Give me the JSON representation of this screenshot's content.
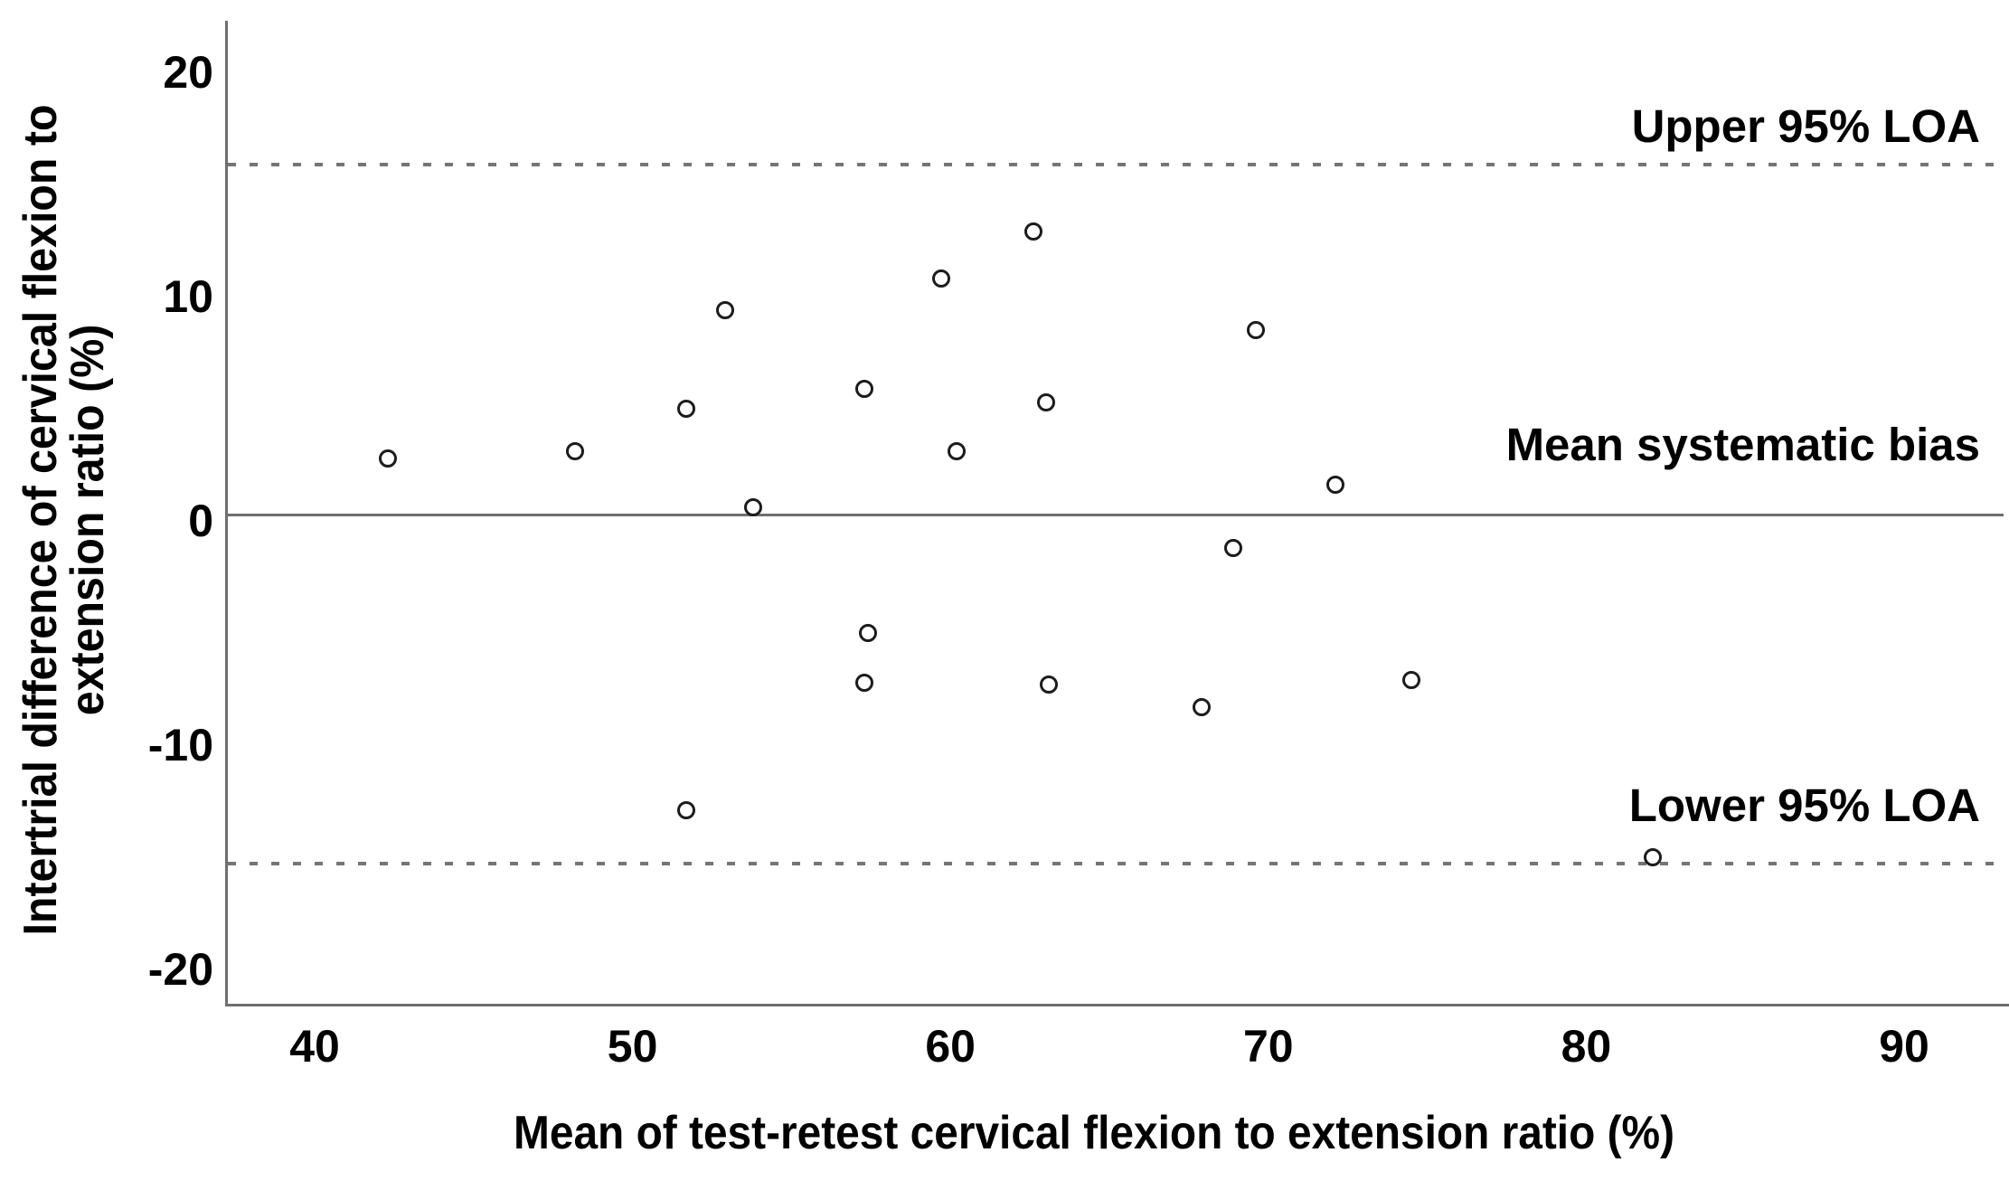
{
  "chart_data": {
    "type": "scatter",
    "title": "",
    "xlabel": "Mean of test-retest cervical flexion to extension ratio (%)",
    "ylabel_line1": "Intertrial difference of cervical flexion to",
    "ylabel_line2": "extension ratio (%)",
    "xlim": [
      37.2,
      93.3
    ],
    "ylim": [
      -21.6,
      22.3
    ],
    "xticks": [
      40,
      50,
      60,
      70,
      80,
      90
    ],
    "yticks": [
      20,
      10,
      0,
      -10,
      -20
    ],
    "grid": false,
    "legend": "none",
    "marker": "open-circle",
    "points": [
      [
        42.3,
        2.8
      ],
      [
        48.2,
        3.1
      ],
      [
        51.7,
        5.0
      ],
      [
        52.9,
        9.4
      ],
      [
        53.8,
        0.6
      ],
      [
        57.3,
        5.9
      ],
      [
        59.7,
        10.8
      ],
      [
        60.2,
        3.1
      ],
      [
        62.6,
        12.9
      ],
      [
        63.0,
        5.3
      ],
      [
        57.4,
        -5.0
      ],
      [
        57.3,
        -7.2
      ],
      [
        63.1,
        -7.3
      ],
      [
        67.9,
        -8.3
      ],
      [
        68.9,
        -1.2
      ],
      [
        69.6,
        8.5
      ],
      [
        72.1,
        1.6
      ],
      [
        74.5,
        -7.1
      ],
      [
        51.7,
        -12.9
      ],
      [
        82.1,
        -15.0
      ]
    ],
    "reference_lines": [
      {
        "id": "upper-loa",
        "value": 15.9,
        "style": "dashed"
      },
      {
        "id": "mean-bias",
        "value": 0.3,
        "style": "solid"
      },
      {
        "id": "lower-loa",
        "value": -15.3,
        "style": "dashed"
      }
    ],
    "annotations": [
      {
        "id": "upper-loa-label",
        "text": "Upper 95% LOA",
        "y": 17.6
      },
      {
        "id": "mean-bias-label",
        "text": "Mean systematic bias",
        "y": 3.4
      },
      {
        "id": "lower-loa-label",
        "text": "Lower 95% LOA",
        "y": -12.7
      }
    ],
    "colors": {
      "axis_line": "#6f6f6f",
      "dashed_line": "#757575",
      "marker_stroke": "#1c1c1c",
      "text": "#000000",
      "background": "#ffffff"
    }
  }
}
